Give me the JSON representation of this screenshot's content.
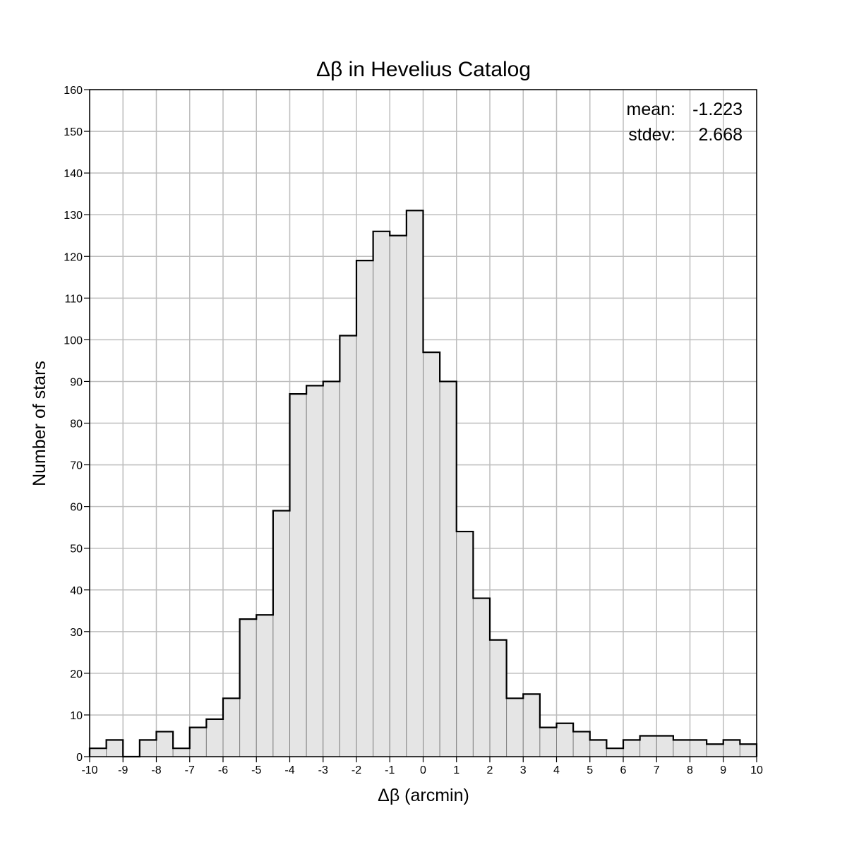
{
  "chart_data": {
    "type": "bar",
    "title": "Δβ in Hevelius Catalog",
    "xlabel": "Δβ (arcmin)",
    "ylabel": "Number of stars",
    "xlim": [
      -10,
      10
    ],
    "ylim": [
      0,
      160
    ],
    "bin_width": 0.5,
    "x_ticks": [
      "-10",
      "-9",
      "-8",
      "-7",
      "-6",
      "-5",
      "-4",
      "-3",
      "-2",
      "-1",
      "0",
      "1",
      "2",
      "3",
      "4",
      "5",
      "6",
      "7",
      "8",
      "9",
      "10"
    ],
    "y_ticks": [
      "0",
      "10",
      "20",
      "30",
      "40",
      "50",
      "60",
      "70",
      "80",
      "90",
      "100",
      "110",
      "120",
      "130",
      "140",
      "150",
      "160"
    ],
    "grid": true,
    "bin_starts": [
      -10,
      -9.5,
      -9,
      -8.5,
      -8,
      -7.5,
      -7,
      -6.5,
      -6,
      -5.5,
      -5,
      -4.5,
      -4,
      -3.5,
      -3,
      -2.5,
      -2,
      -1.5,
      -1,
      -0.5,
      0,
      0.5,
      1,
      1.5,
      2,
      2.5,
      3,
      3.5,
      4,
      4.5,
      5,
      5.5,
      6,
      6.5,
      7,
      7.5,
      8,
      8.5,
      9,
      9.5
    ],
    "values": [
      2,
      4,
      0,
      4,
      6,
      2,
      7,
      9,
      14,
      33,
      34,
      59,
      87,
      89,
      90,
      101,
      119,
      126,
      125,
      131,
      97,
      90,
      54,
      38,
      28,
      14,
      15,
      7,
      8,
      6,
      4,
      2,
      4,
      5,
      5,
      4,
      4,
      3,
      4,
      3
    ],
    "annotations": {
      "mean_label": "mean:",
      "mean_value": "-1.223",
      "stdev_label": "stdev:",
      "stdev_value": "2.668"
    }
  }
}
